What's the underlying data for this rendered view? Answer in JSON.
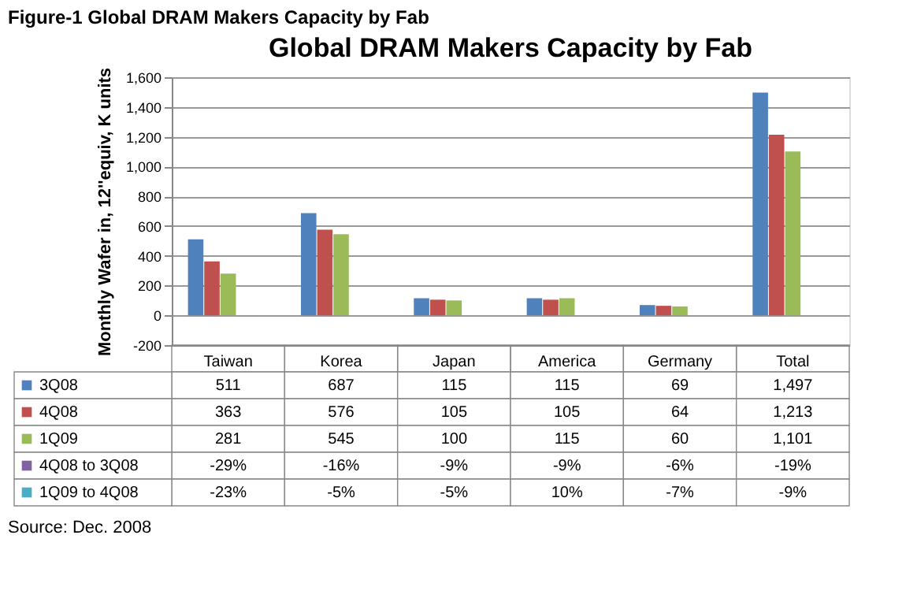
{
  "chart_data": {
    "type": "bar",
    "title": "Global DRAM Makers Capacity by Fab",
    "subtitle": "Figure-1 Global DRAM Makers Capacity by Fab",
    "ylabel": "Monthly Wafer in, 12''equiv, K units",
    "categories": [
      "Taiwan",
      "Korea",
      "Japan",
      "America",
      "Germany",
      "Total"
    ],
    "series": [
      {
        "name": "3Q08",
        "color": "#4f81bd",
        "values": [
          511,
          687,
          115,
          115,
          69,
          1497
        ],
        "value_labels": [
          "511",
          "687",
          "115",
          "115",
          "69",
          "1,497"
        ]
      },
      {
        "name": "4Q08",
        "color": "#c0504d",
        "values": [
          363,
          576,
          105,
          105,
          64,
          1213
        ],
        "value_labels": [
          "363",
          "576",
          "105",
          "105",
          "64",
          "1,213"
        ]
      },
      {
        "name": "1Q09",
        "color": "#9bbb59",
        "values": [
          281,
          545,
          100,
          115,
          60,
          1101
        ],
        "value_labels": [
          "281",
          "545",
          "100",
          "115",
          "60",
          "1,101"
        ]
      },
      {
        "name": "4Q08 to 3Q08",
        "color": "#8064a2",
        "values": [
          -0.29,
          -0.16,
          -0.09,
          -0.09,
          -0.06,
          -0.19
        ],
        "value_labels": [
          "-29%",
          "-16%",
          "-9%",
          "-9%",
          "-6%",
          "-19%"
        ]
      },
      {
        "name": "1Q09 to 4Q08",
        "color": "#4bacc6",
        "values": [
          -0.23,
          -0.05,
          -0.05,
          0.1,
          -0.07,
          -0.09
        ],
        "value_labels": [
          "-23%",
          "-5%",
          "-5%",
          "10%",
          "-7%",
          "-9%"
        ]
      }
    ],
    "ylim": [
      -200,
      1600
    ],
    "yticks": [
      {
        "value": -200,
        "label": "-200"
      },
      0,
      200,
      400,
      600,
      800,
      {
        "value": 1000,
        "label": "1,000"
      },
      {
        "value": 1200,
        "label": "1,200"
      },
      {
        "value": 1400,
        "label": "1,400"
      },
      {
        "value": 1600,
        "label": "1,600"
      }
    ],
    "grid": "y",
    "legend": "bottom",
    "annotations": [
      "Source: Dec. 2008"
    ]
  }
}
